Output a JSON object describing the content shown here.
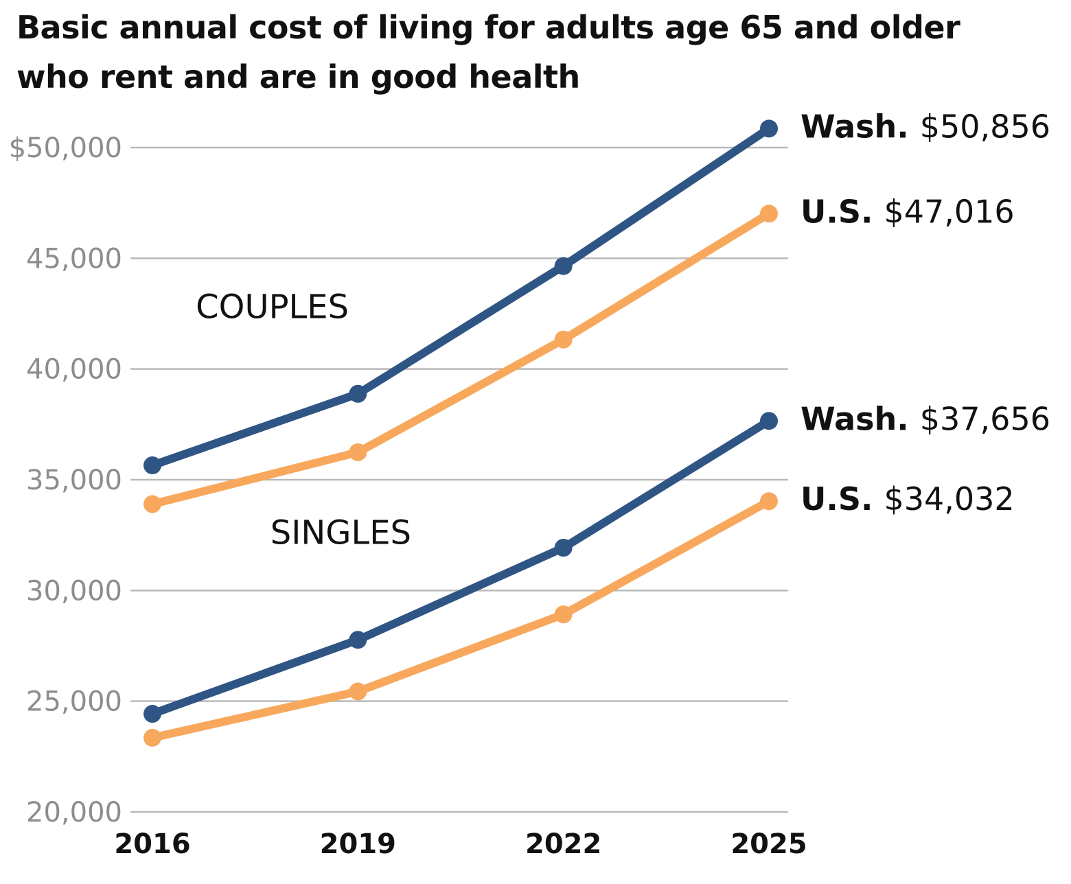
{
  "title_lines": [
    "Basic annual cost of living for adults age 65 and older",
    "who rent and are in good health"
  ],
  "colors": {
    "wash": "#2f5584",
    "us": "#f8a85c",
    "grid": "#b9b9b9"
  },
  "chart_data": {
    "type": "line",
    "title": "Basic annual cost of living for adults age 65 and older who rent and are in good health",
    "x": [
      "2016",
      "2019",
      "2022",
      "2025"
    ],
    "ylim": [
      20000,
      50000
    ],
    "yticks": [
      20000,
      25000,
      30000,
      35000,
      40000,
      45000,
      50000
    ],
    "ytick_labels": [
      "20,000",
      "25,000",
      "30,000",
      "35,000",
      "40,000",
      "45,000",
      "$50,000"
    ],
    "grid": true,
    "groups": [
      {
        "label": "COUPLES",
        "label_x": 2017.75,
        "label_y": 42300
      },
      {
        "label": "SINGLES",
        "label_x": 2018.75,
        "label_y": 32100
      }
    ],
    "series": [
      {
        "group": "COUPLES",
        "name": "Wash.",
        "color_key": "wash",
        "values": [
          35650,
          38880,
          44650,
          50856
        ],
        "end_label": "$50,856"
      },
      {
        "group": "COUPLES",
        "name": "U.S.",
        "color_key": "us",
        "values": [
          33900,
          36240,
          41330,
          47016
        ],
        "end_label": "$47,016"
      },
      {
        "group": "SINGLES",
        "name": "Wash.",
        "color_key": "wash",
        "values": [
          24430,
          27770,
          31930,
          37656
        ],
        "end_label": "$37,656"
      },
      {
        "group": "SINGLES",
        "name": "U.S.",
        "color_key": "us",
        "values": [
          23350,
          25440,
          28920,
          34032
        ],
        "end_label": "$34,032"
      }
    ]
  }
}
